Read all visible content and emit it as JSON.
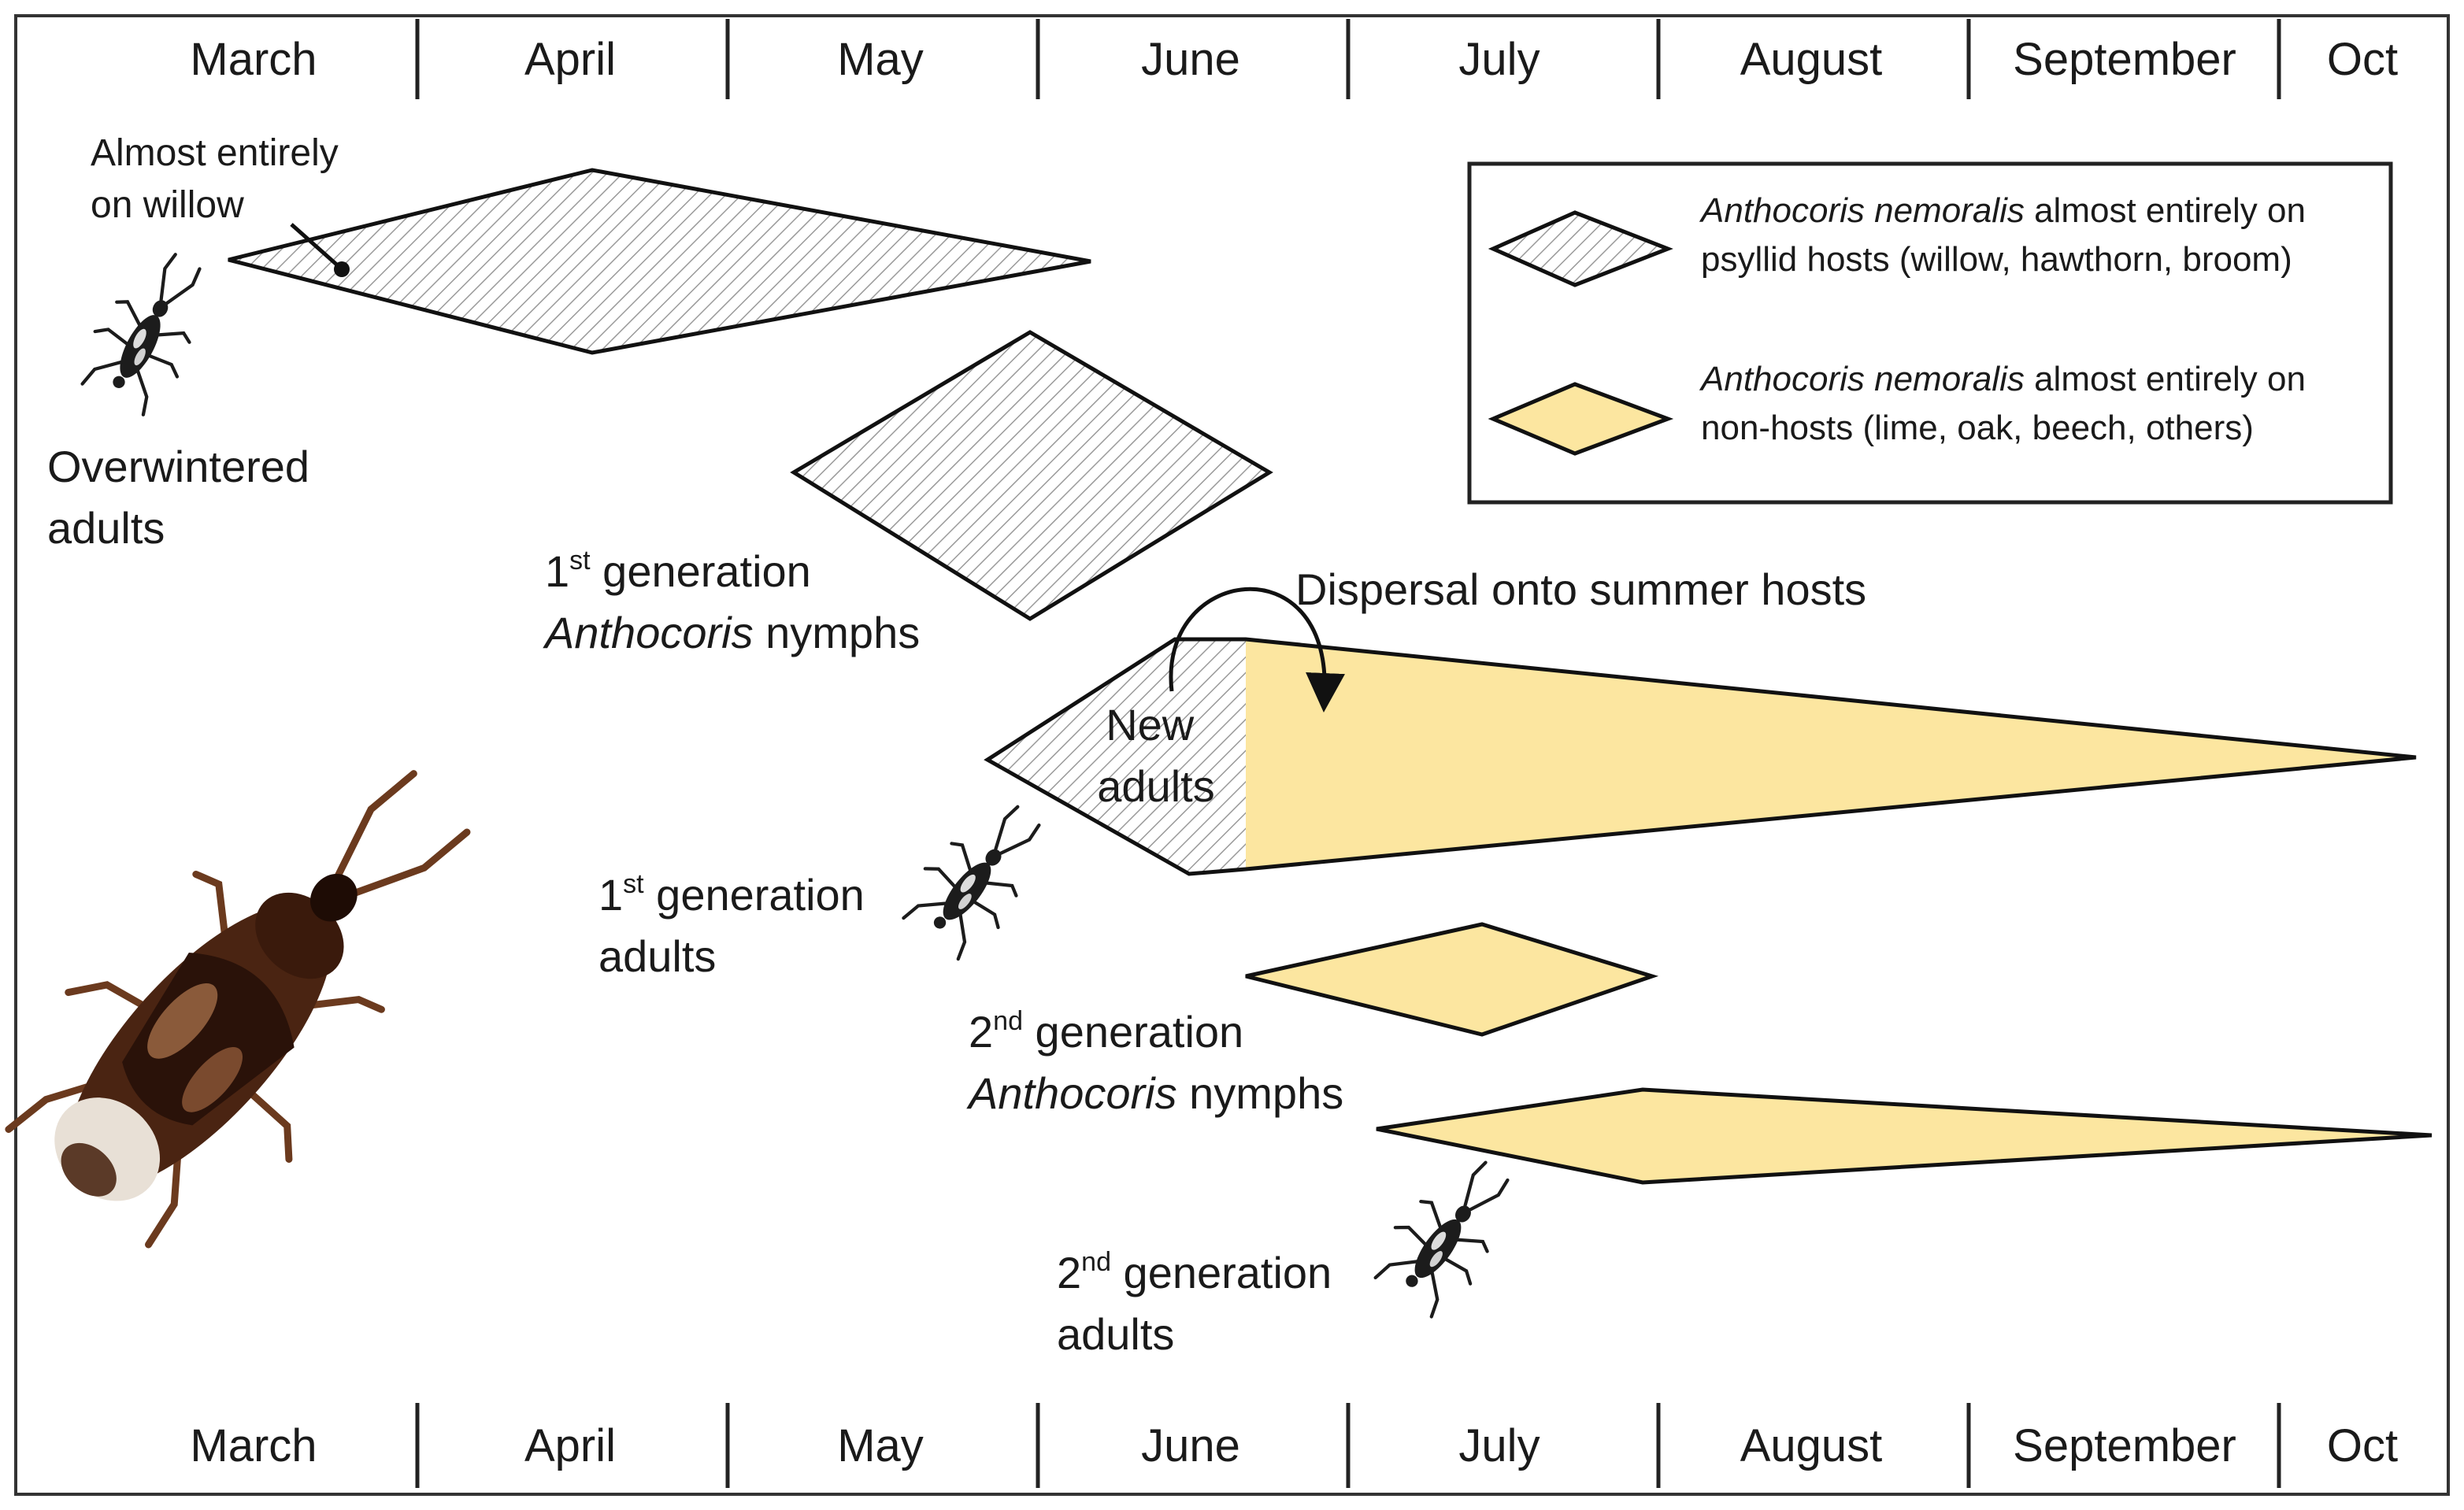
{
  "months": [
    "March",
    "April",
    "May",
    "June",
    "July",
    "August",
    "September",
    "Oct"
  ],
  "labels": {
    "willow_note": [
      "Almost entirely",
      "on willow"
    ],
    "overwintered": [
      "Overwintered",
      "adults"
    ],
    "gen1_nymphs": {
      "num": "1",
      "sup": "st",
      "rest": " generation",
      "genus": "Anthocoris",
      "stage": " nymphs"
    },
    "dispersal": "Dispersal onto summer hosts",
    "new_adults": [
      "New",
      "adults"
    ],
    "gen1_adults": {
      "num": "1",
      "sup": "st",
      "rest": " generation",
      "stage": "adults"
    },
    "gen2_nymphs": {
      "num": "2",
      "sup": "nd",
      "rest": " generation",
      "genus": "Anthocoris",
      "stage": " nymphs"
    },
    "gen2_adults": {
      "num": "2",
      "sup": "nd",
      "rest": " generation",
      "stage": "adults"
    }
  },
  "legend": {
    "psyllid": {
      "species": "Anthocoris nemoralis",
      "line1_rest": " almost entirely on",
      "line2": "psyllid hosts (willow, hawthorn, broom)"
    },
    "nonhost": {
      "species": "Anthocoris nemoralis",
      "line1_rest": " almost entirely on",
      "line2": "non-hosts (lime, oak, beech, others)"
    }
  },
  "colors": {
    "nonhost_fill": "#FCE6A0",
    "hatch": "#9a9a9a",
    "outline": "#111111"
  },
  "icons": [
    "bug-icon",
    "anthocoris-bug-photo"
  ]
}
